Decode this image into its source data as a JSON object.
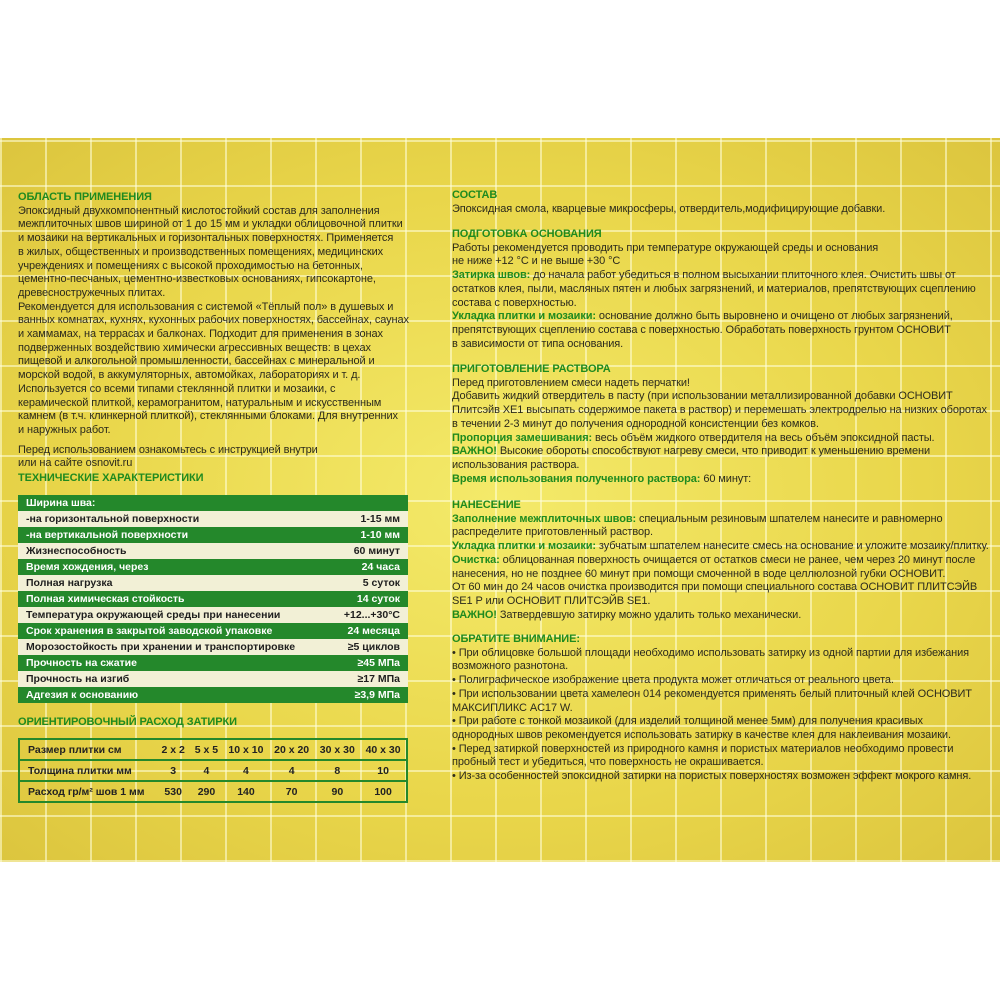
{
  "left": {
    "sections": [
      {
        "title": "ОБЛАСТЬ ПРИМЕНЕНИЯ",
        "paras": [
          {
            "lines": [
              "Эпоксидный двухкомпонентный кислотостойкий состав для заполнения",
              "межплиточных швов шириной от 1 до 15 мм и укладки облицовочной плитки",
              "и мозаики на вертикальных и горизонтальных поверхностях. Применяется",
              "в жилых, общественных и производственных помещениях, медицинских",
              "учреждениях и помещениях с высокой проходимостью на бетонных,",
              "цементно-песчаных, цементно-известковых основаниях, гипсокартоне,",
              "древесностружечных плитах."
            ]
          },
          {
            "lines": [
              "Рекомендуется для использования с системой «Тёплый пол» в душевых и",
              "ванных комнатах, кухнях, кухонных рабочих поверхностях, бассейнах, саунах",
              "и хаммамах, на террасах и балконах. Подходит для применения в зонах",
              "подверженных воздействию химически агрессивных веществ: в цехах",
              "пищевой и алкогольной промышленности, бассейнах с минеральной и",
              "морской водой, в аккумуляторных, автомойках, лабораториях и т. д.",
              "Используется со всеми типами стеклянной плитки и мозаики, с",
              "керамической плиткой, керамогранитом, натуральным и искусственным",
              "камнем (в т.ч. клинкерной плиткой), стеклянными блоками. Для внутренних",
              "и наружных работ."
            ]
          },
          {
            "gap": true,
            "lines": [
              "Перед использованием ознакомьтесь с инструкцией внутри",
              "или на сайте osnovit.ru"
            ]
          }
        ]
      },
      {
        "title": "ТЕХНИЧЕСКИЕ ХАРАКТЕРИСТИКИ",
        "paras": []
      }
    ],
    "spec_table": [
      {
        "name": "Ширина шва:",
        "value": ""
      },
      {
        "name": "-на горизонтальной поверхности",
        "value": "1-15 мм"
      },
      {
        "name": "-на вертикальной поверхности",
        "value": "1-10 мм"
      },
      {
        "name": "Жизнеспособность",
        "value": "60 минут"
      },
      {
        "name": "Время хождения, через",
        "value": "24 часа"
      },
      {
        "name": "Полная нагрузка",
        "value": "5 суток"
      },
      {
        "name": "Полная химическая стойкость",
        "value": "14 суток"
      },
      {
        "name": "Температура окружающей среды при нанесении",
        "value": "+12...+30°C"
      },
      {
        "name": "Срок хранения в закрытой заводской упаковке",
        "value": "24 месяца"
      },
      {
        "name": "Морозостойкость при хранении и транспортировке",
        "value": "≥5 циклов"
      },
      {
        "name": "Прочность на сжатие",
        "value": "≥45 МПа"
      },
      {
        "name": "Прочность на изгиб",
        "value": "≥17 МПа"
      },
      {
        "name": "Адгезия к основанию",
        "value": "≥3,9 МПа"
      }
    ],
    "consumption_title": "ОРИЕНТИРОВОЧНЫЙ РАСХОД ЗАТИРКИ",
    "consumption_table": [
      [
        "Размер плитки см",
        "2 x 2",
        "5 x 5",
        "10 x 10",
        "20 x 20",
        "30 x 30",
        "40 x 30"
      ],
      [
        "Толщина плитки мм",
        "3",
        "4",
        "4",
        "4",
        "8",
        "10"
      ],
      [
        "Расход гр/м² шов 1 мм",
        "530",
        "290",
        "140",
        "70",
        "90",
        "100"
      ]
    ]
  },
  "right": {
    "sections": [
      {
        "title": "СОСТАВ",
        "paras": [
          {
            "lines": [
              "Эпоксидная смола, кварцевые микросферы, отвердитель,модифицирующие добавки."
            ]
          }
        ]
      },
      {
        "title": "ПОДГОТОВКА ОСНОВАНИЯ",
        "paras": [
          {
            "lines": [
              "Работы рекомендуется проводить при температуре окружающей среды и основания",
              "не ниже +12 °C и не выше +30 °C"
            ]
          },
          {
            "label": "Затирка швов:",
            "lines": [
              " до начала работ убедиться в полном высыхании плиточного клея. Очистить швы от",
              "остатков клея, пыли, масляных пятен и любых загрязнений, и материалов, препятствующих сцеплению",
              "состава с поверхностью."
            ]
          },
          {
            "label": "Укладка плитки и мозаики:",
            "lines": [
              " основание должно быть выровнено и очищено от любых загрязнений,",
              "препятствующих сцеплению состава с поверхностью. Обработать поверхность грунтом ОСНОВИТ",
              "в зависимости от типа основания."
            ]
          }
        ]
      },
      {
        "title": "ПРИГОТОВЛЕНИЕ РАСТВОРА",
        "paras": [
          {
            "lines": [
              "Перед приготовлением смеси надеть перчатки!",
              "Добавить жидкий отвердитель в пасту (при использовании металлизированной добавки ОСНОВИТ",
              "Плитсэйв XE1 высыпать содержимое пакета в раствор) и перемешать электродрелью на низких оборотах",
              "в течении 2-3 минут до получения однородной консистенции без комков."
            ]
          },
          {
            "label": "Пропорция замешивания:",
            "lines": [
              " весь объём жидкого отвердителя на весь объём эпоксидной пасты."
            ]
          },
          {
            "label": "ВАЖНО!",
            "lines": [
              " Высокие обороты способствуют нагреву смеси, что приводит к уменьшению времени",
              "использования раствора."
            ]
          },
          {
            "label": "Время использования полученного раствора:",
            "lines": [
              " 60 минут:"
            ]
          }
        ]
      },
      {
        "title": "НАНЕСЕНИЕ",
        "paras": [
          {
            "label": "Заполнение межплиточных швов:",
            "lines": [
              " специальным резиновым шпателем нанесите и равномерно",
              "распределите приготовленный раствор."
            ]
          },
          {
            "label": "Укладка плитки и мозаики:",
            "lines": [
              " зубчатым шпателем нанесите смесь на основание и уложите мозаику/плитку."
            ]
          },
          {
            "label": "Очистка:",
            "lines": [
              " облицованная поверхность очищается от остатков смеси не ранее, чем через 20 минут после",
              "нанесения, но не позднее 60 минут при помощи смоченной в воде целлюлозной губки ОСНОВИТ.",
              "От 60 мин до 24 часов очистка производится при помощи специального состава ОСНОВИТ ПЛИТСЭЙВ",
              "SE1 P или ОСНОВИТ ПЛИТСЭЙВ SE1."
            ]
          },
          {
            "label": "ВАЖНО!",
            "lines": [
              " Затвердевшую затирку можно удалить только механически."
            ]
          }
        ]
      },
      {
        "title": "ОБРАТИТЕ ВНИМАНИЕ:",
        "paras": [
          {
            "lines": [
              "• При облицовке большой площади необходимо использовать затирку из одной партии для избежания",
              "возможного разнотона.",
              "• Полиграфическое изображение цвета продукта может отличаться от реального цвета.",
              "• При использовании цвета хамелеон 014 рекомендуется применять белый плиточный клей ОСНОВИТ",
              "МАКСИПЛИКС AC17 W.",
              "• При работе с тонкой мозаикой (для изделий толщиной менее 5мм) для получения красивых",
              "однородных швов рекомендуется использовать затирку в качестве клея для наклеивания мозаики.",
              "• Перед затиркой поверхностей из природного камня и пористых материалов необходимо провести",
              "пробный тест и убедиться, что поверхность не окрашивается.",
              "• Из-за особенностей эпоксидной затирки на пористых поверхностях  возможен эффект мокрого камня."
            ]
          }
        ]
      }
    ]
  },
  "colors": {
    "accent_green": "#24882b",
    "title_green": "#1f8a1f",
    "panel_yellow": "#e9d64a",
    "light_row": "#f2f0d6"
  }
}
